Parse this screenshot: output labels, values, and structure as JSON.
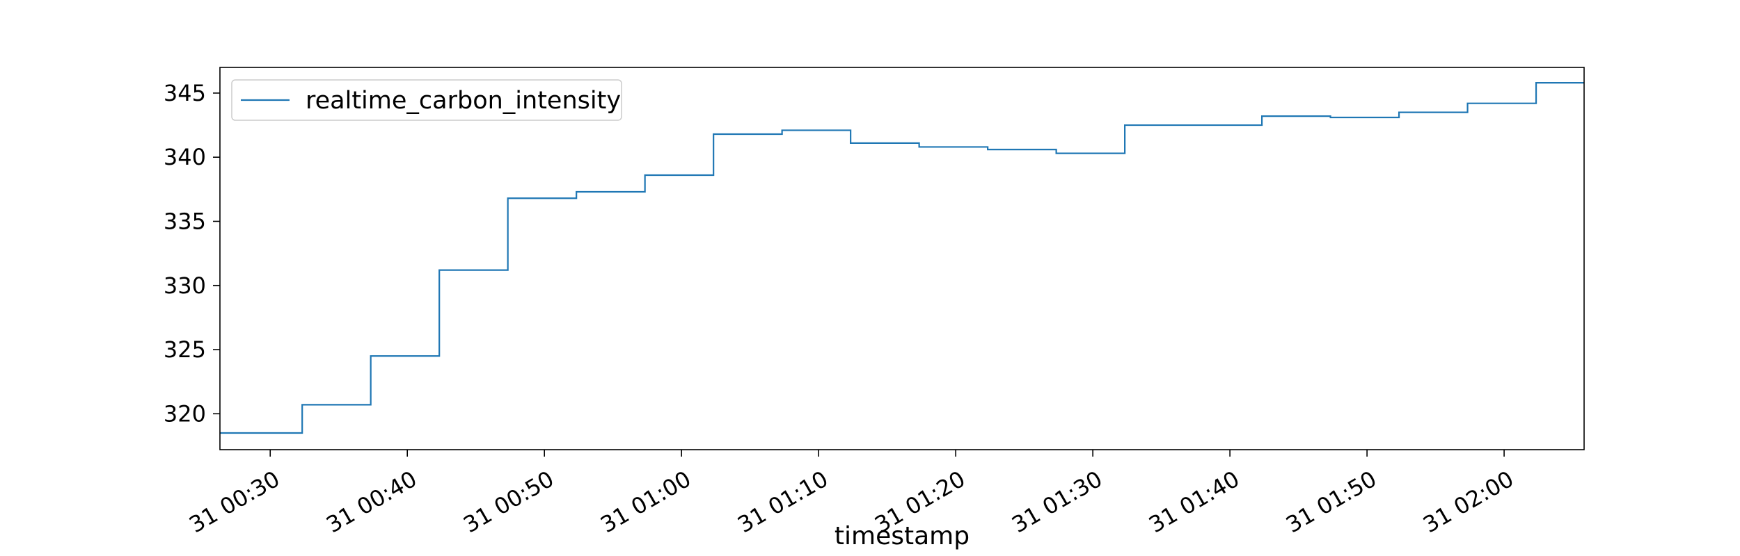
{
  "chart_data": {
    "type": "line",
    "title": "",
    "xlabel": "timestamp",
    "ylabel": "",
    "x_ticks": [
      "31 00:30",
      "31 00:40",
      "31 00:50",
      "31 01:00",
      "31 01:10",
      "31 01:20",
      "31 01:30",
      "31 01:40",
      "31 01:50",
      "31 02:00"
    ],
    "y_ticks": [
      320,
      325,
      330,
      335,
      340,
      345
    ],
    "xlim": [
      "2023-03-31 00:26:20",
      "2023-03-31 02:05:50"
    ],
    "ylim": [
      317.2,
      347.0
    ],
    "grid": false,
    "legend": "top-left",
    "series": [
      {
        "name": "realtime_carbon_intensity",
        "color": "#1f77b4",
        "step": true,
        "points": [
          [
            "2023-03-31 00:26:20",
            318.5
          ],
          [
            "2023-03-31 00:32:20",
            320.7
          ],
          [
            "2023-03-31 00:37:20",
            324.5
          ],
          [
            "2023-03-31 00:42:20",
            331.2
          ],
          [
            "2023-03-31 00:47:20",
            336.8
          ],
          [
            "2023-03-31 00:52:20",
            337.3
          ],
          [
            "2023-03-31 00:57:20",
            338.6
          ],
          [
            "2023-03-31 01:02:20",
            341.8
          ],
          [
            "2023-03-31 01:07:20",
            342.1
          ],
          [
            "2023-03-31 01:12:20",
            341.1
          ],
          [
            "2023-03-31 01:17:20",
            340.8
          ],
          [
            "2023-03-31 01:22:20",
            340.6
          ],
          [
            "2023-03-31 01:27:20",
            340.3
          ],
          [
            "2023-03-31 01:32:20",
            342.5
          ],
          [
            "2023-03-31 01:42:20",
            343.2
          ],
          [
            "2023-03-31 01:47:20",
            343.1
          ],
          [
            "2023-03-31 01:52:20",
            343.5
          ],
          [
            "2023-03-31 01:57:20",
            344.2
          ],
          [
            "2023-03-31 02:02:20",
            345.8
          ],
          [
            "2023-03-31 02:05:50",
            345.8
          ]
        ]
      }
    ]
  }
}
